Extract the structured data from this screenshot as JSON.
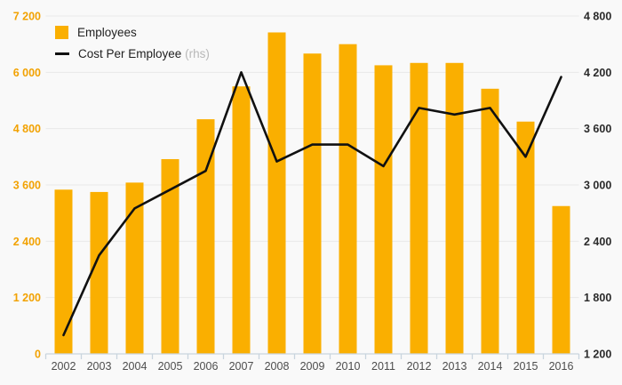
{
  "chart_data": {
    "type": "combo-bar-line",
    "title": "",
    "categories": [
      "2002",
      "2003",
      "2004",
      "2005",
      "2006",
      "2007",
      "2008",
      "2009",
      "2010",
      "2011",
      "2012",
      "2013",
      "2014",
      "2015",
      "2016"
    ],
    "series": [
      {
        "name": "Employees",
        "type": "bar",
        "axis": "left",
        "color": "#FAAF00",
        "values": [
          3500,
          3450,
          3650,
          4150,
          5000,
          5700,
          6850,
          6400,
          6600,
          6150,
          6200,
          6200,
          5650,
          4950,
          3150
        ]
      },
      {
        "name": "Cost Per Employee",
        "suffix": "(rhs)",
        "type": "line",
        "axis": "right",
        "color": "#111111",
        "values": [
          1400,
          2250,
          2750,
          2950,
          3150,
          4200,
          3250,
          3430,
          3430,
          3200,
          3820,
          3750,
          3820,
          3300,
          4150
        ]
      }
    ],
    "left_axis": {
      "min": 0,
      "max": 7200,
      "step": 1200,
      "ticks": [
        "0",
        "1 200",
        "2 400",
        "3 600",
        "4 800",
        "6 000",
        "7 200"
      ],
      "color": "#F2A202"
    },
    "right_axis": {
      "min": 1200,
      "max": 4800,
      "step": 600,
      "ticks": [
        "1 200",
        "1 800",
        "2 400",
        "3 000",
        "3 600",
        "4 200",
        "4 800"
      ],
      "color": "#2b2b2b"
    },
    "grid": true,
    "legend_position": "top-left"
  },
  "colors": {
    "background": "#f9f9f9",
    "gridline": "#e9e9e9",
    "axis_line": "#c9d4de",
    "year_label": "#4d4d4d"
  }
}
